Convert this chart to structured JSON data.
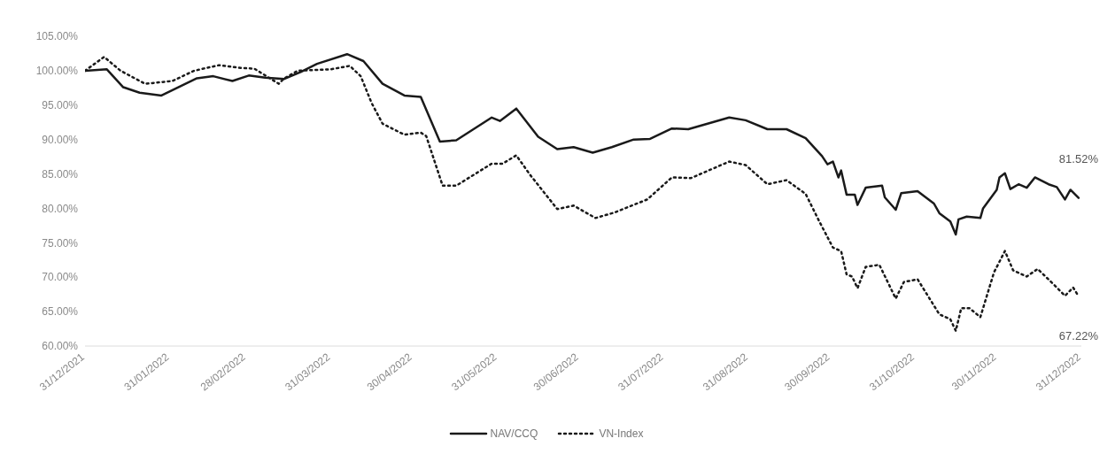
{
  "chart_data": {
    "type": "line",
    "ylim": [
      60,
      105
    ],
    "yticks": [
      {
        "value": 60,
        "label": "60.00%"
      },
      {
        "value": 65,
        "label": "65.00%"
      },
      {
        "value": 70,
        "label": "70.00%"
      },
      {
        "value": 75,
        "label": "75.00%"
      },
      {
        "value": 80,
        "label": "80.00%"
      },
      {
        "value": 85,
        "label": "85.00%"
      },
      {
        "value": 90,
        "label": "90.00%"
      },
      {
        "value": 95,
        "label": "95.00%"
      },
      {
        "value": 100,
        "label": "100.00%"
      },
      {
        "value": 105,
        "label": "105.00%"
      }
    ],
    "xlim": [
      "2021-12-31",
      "2022-12-31"
    ],
    "xticks": [
      {
        "value": "2021-12-31",
        "label": "31/12/2021"
      },
      {
        "value": "2022-01-31",
        "label": "31/01/2022"
      },
      {
        "value": "2022-02-28",
        "label": "28/02/2022"
      },
      {
        "value": "2022-03-31",
        "label": "31/03/2022"
      },
      {
        "value": "2022-04-30",
        "label": "30/04/2022"
      },
      {
        "value": "2022-05-31",
        "label": "31/05/2022"
      },
      {
        "value": "2022-06-30",
        "label": "30/06/2022"
      },
      {
        "value": "2022-07-31",
        "label": "31/07/2022"
      },
      {
        "value": "2022-08-31",
        "label": "31/08/2022"
      },
      {
        "value": "2022-09-30",
        "label": "30/09/2022"
      },
      {
        "value": "2022-10-31",
        "label": "31/10/2022"
      },
      {
        "value": "2022-11-30",
        "label": "30/11/2022"
      },
      {
        "value": "2022-12-31",
        "label": "31/12/2022"
      }
    ],
    "legend": "bottom",
    "marker": "none",
    "series": [
      {
        "name": "NAV/CCQ",
        "color": "#1a1a1a",
        "line_style": "solid",
        "x": [
          "2021-12-31",
          "2022-01-08",
          "2022-01-14",
          "2022-01-20",
          "2022-01-28",
          "2022-02-10",
          "2022-02-16",
          "2022-02-23",
          "2022-03-01",
          "2022-03-07",
          "2022-03-14",
          "2022-03-20",
          "2022-03-26",
          "2022-04-06",
          "2022-04-12",
          "2022-04-19",
          "2022-04-27",
          "2022-05-03",
          "2022-05-10",
          "2022-05-16",
          "2022-05-29",
          "2022-06-01",
          "2022-06-07",
          "2022-06-15",
          "2022-06-22",
          "2022-06-28",
          "2022-07-05",
          "2022-07-12",
          "2022-07-20",
          "2022-07-26",
          "2022-08-03",
          "2022-08-09",
          "2022-08-24",
          "2022-08-30",
          "2022-09-07",
          "2022-09-14",
          "2022-09-21",
          "2022-09-27",
          "2022-09-29",
          "2022-10-01",
          "2022-10-03",
          "2022-10-04",
          "2022-10-06",
          "2022-10-09",
          "2022-10-10",
          "2022-10-13",
          "2022-10-19",
          "2022-10-20",
          "2022-10-24",
          "2022-10-26",
          "2022-11-01",
          "2022-11-07",
          "2022-11-09",
          "2022-11-13",
          "2022-11-15",
          "2022-11-16",
          "2022-11-19",
          "2022-11-24",
          "2022-11-25",
          "2022-11-30",
          "2022-12-01",
          "2022-12-03",
          "2022-12-05",
          "2022-12-08",
          "2022-12-11",
          "2022-12-14",
          "2022-12-19",
          "2022-12-22",
          "2022-12-25",
          "2022-12-27",
          "2022-12-30"
        ],
        "values": [
          100,
          100.2,
          97.6,
          96.8,
          96.4,
          98.9,
          99.2,
          98.5,
          99.3,
          99.0,
          98.8,
          99.8,
          101.0,
          102.4,
          101.4,
          98.1,
          96.4,
          96.2,
          89.7,
          89.9,
          93.2,
          92.7,
          94.5,
          90.4,
          88.6,
          88.9,
          88.1,
          88.9,
          90.0,
          90.1,
          91.6,
          91.5,
          93.2,
          92.8,
          91.5,
          91.5,
          90.2,
          87.6,
          86.4,
          86.8,
          84.5,
          85.5,
          82.0,
          82.0,
          80.5,
          83.0,
          83.3,
          81.6,
          79.8,
          82.2,
          82.5,
          80.7,
          79.3,
          78.1,
          76.2,
          78.4,
          78.8,
          78.6,
          80.0,
          82.7,
          84.5,
          85.1,
          82.8,
          83.5,
          83.0,
          84.5,
          83.5,
          83.1,
          81.3,
          82.7,
          81.52
        ]
      },
      {
        "name": "VN-Index",
        "color": "#1a1a1a",
        "line_style": "dotted",
        "x": [
          "2021-12-31",
          "2022-01-07",
          "2022-01-13",
          "2022-01-22",
          "2022-02-01",
          "2022-02-09",
          "2022-02-18",
          "2022-02-26",
          "2022-03-03",
          "2022-03-12",
          "2022-03-14",
          "2022-03-19",
          "2022-03-31",
          "2022-04-07",
          "2022-04-11",
          "2022-04-15",
          "2022-04-19",
          "2022-04-27",
          "2022-05-03",
          "2022-05-05",
          "2022-05-11",
          "2022-05-16",
          "2022-05-29",
          "2022-06-02",
          "2022-06-07",
          "2022-06-12",
          "2022-06-22",
          "2022-06-28",
          "2022-07-06",
          "2022-07-13",
          "2022-07-25",
          "2022-08-03",
          "2022-08-10",
          "2022-08-24",
          "2022-08-30",
          "2022-09-07",
          "2022-09-14",
          "2022-09-21",
          "2022-09-26",
          "2022-10-01",
          "2022-10-04",
          "2022-10-06",
          "2022-10-08",
          "2022-10-10",
          "2022-10-13",
          "2022-10-18",
          "2022-10-24",
          "2022-10-27",
          "2022-11-01",
          "2022-11-09",
          "2022-11-13",
          "2022-11-15",
          "2022-11-17",
          "2022-11-20",
          "2022-11-24",
          "2022-11-29",
          "2022-12-03",
          "2022-12-06",
          "2022-12-11",
          "2022-12-15",
          "2022-12-21",
          "2022-12-25",
          "2022-12-28",
          "2022-12-30"
        ],
        "values": [
          100,
          102,
          100,
          98.1,
          98.5,
          100,
          100.8,
          100.4,
          100.3,
          98.1,
          98.9,
          100,
          100.2,
          100.7,
          99.2,
          95.3,
          92.3,
          90.7,
          91.0,
          90.5,
          83.3,
          83.3,
          86.5,
          86.5,
          87.7,
          84.9,
          79.9,
          80.4,
          78.6,
          79.4,
          81.3,
          84.5,
          84.4,
          86.8,
          86.3,
          83.5,
          84.1,
          82.1,
          78.1,
          74.3,
          73.8,
          70.4,
          70.1,
          68.4,
          71.5,
          71.8,
          66.9,
          69.3,
          69.7,
          64.6,
          63.9,
          62.2,
          65.5,
          65.5,
          64.2,
          70.7,
          73.8,
          71.0,
          70.1,
          71.2,
          68.9,
          67.3,
          68.5,
          67.22
        ]
      }
    ],
    "annotations": [
      {
        "text": "81.52%",
        "x": "2022-12-30",
        "y": 81.52
      },
      {
        "text": "67.22%",
        "x": "2022-12-30",
        "y": 67.22
      }
    ]
  }
}
